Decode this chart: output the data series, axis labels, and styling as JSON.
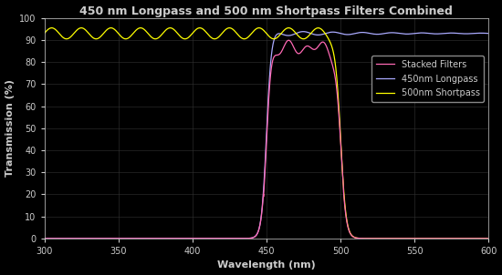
{
  "title": "450 nm Longpass and 500 nm Shortpass Filters Combined",
  "xlabel": "Wavelength (nm)",
  "ylabel": "Transmission (%)",
  "xlim": [
    300,
    600
  ],
  "ylim": [
    0,
    100
  ],
  "xticks": [
    300,
    350,
    400,
    450,
    500,
    550,
    600
  ],
  "yticks": [
    0,
    10,
    20,
    30,
    40,
    50,
    60,
    70,
    80,
    90,
    100
  ],
  "background_color": "#000000",
  "text_color": "#cccccc",
  "grid_color": "#333333",
  "legend_labels": [
    "Stacked Filters",
    "450nm Longpass",
    "500nm Shortpass"
  ],
  "stacked_color": "#ff69b4",
  "longpass_color": "#aaaaff",
  "shortpass_color": "#ffff00",
  "shortpass_cutoff_color": "#ffaa88",
  "title_fontsize": 9,
  "label_fontsize": 8,
  "tick_fontsize": 7,
  "legend_fontsize": 7
}
